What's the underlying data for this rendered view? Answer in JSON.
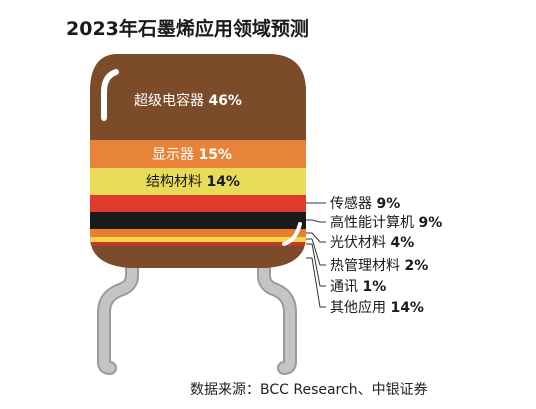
{
  "title": "2023年石墨烯应用领域预测",
  "source": "数据来源：BCC Research、中银证券",
  "colors": {
    "body": "#7b4b2a",
    "leg": "#c4c4c4",
    "leg_outline": "#9a9a9a",
    "highlight": "#ffffff"
  },
  "chart_data": {
    "type": "stacked-bar",
    "title": "2023年石墨烯应用领域预测",
    "unit": "%",
    "categories": [
      "超级电容器",
      "显示器",
      "结构材料",
      "传感器",
      "高性能计算机",
      "光伏材料",
      "热管理材料",
      "通讯",
      "其他应用"
    ],
    "values": [
      46,
      15,
      14,
      9,
      9,
      4,
      2,
      1,
      14
    ],
    "value_labels": [
      "46%",
      "15%",
      "14%",
      "9%",
      "9%",
      "4%",
      "2%",
      "1%",
      "14%"
    ],
    "colors": [
      "#7b4b2a",
      "#e8843a",
      "#e8db5a",
      "#e03b2a",
      "#1a1a1a",
      "#e87f2c",
      "#f2d64a",
      "#c23a2a",
      "#7b4b2a"
    ],
    "legend": "callout-lines-right"
  }
}
